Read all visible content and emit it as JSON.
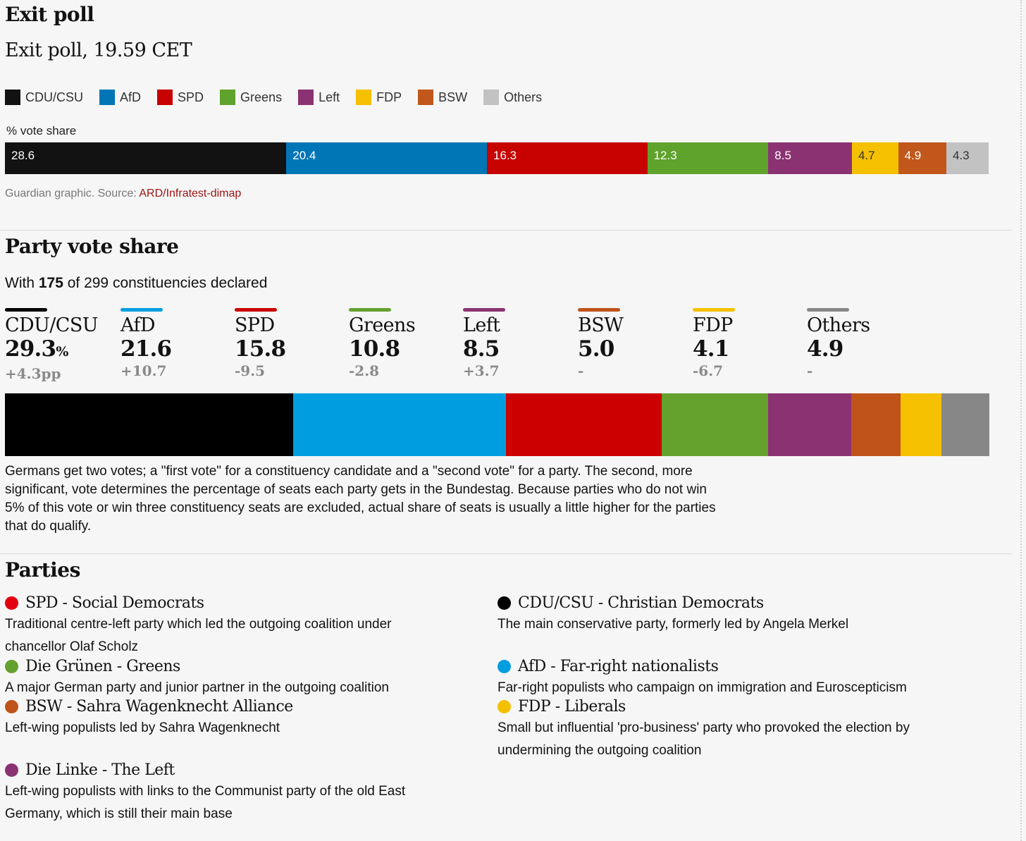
{
  "exit_poll": {
    "title": "Exit poll",
    "subtitle": "Exit poll, 19.59 CET",
    "axis_label": "% vote share",
    "source_prefix": "Guardian graphic. Source: ",
    "source_link": "ARD/Infratest-dimap"
  },
  "party_vote_share": {
    "title": "Party vote share",
    "declared_prefix": "With ",
    "declared_count": "175",
    "declared_suffix": " of 299 constituencies declared",
    "explanation": "Germans get two votes; a \"first vote\" for a constituency candidate and a \"second vote\" for a party. The second, more significant, vote determines the percentage of seats each party gets in the Bundestag. Because parties who do not win 5% of this vote or win three constituency seats are excluded, actual share of seats is usually a little higher for the parties that do qualify.",
    "parties": [
      {
        "name": "CDU/CSU",
        "value": "29.3",
        "unit": "%",
        "change": "+4.3pp",
        "color": "#000000"
      },
      {
        "name": "AfD",
        "value": "21.6",
        "unit": "",
        "change": "+10.7",
        "color": "#009ee0"
      },
      {
        "name": "SPD",
        "value": "15.8",
        "unit": "",
        "change": "-9.5",
        "color": "#cc0000"
      },
      {
        "name": "Greens",
        "value": "10.8",
        "unit": "",
        "change": "-2.8",
        "color": "#64a12d"
      },
      {
        "name": "Left",
        "value": "8.5",
        "unit": "",
        "change": "+3.7",
        "color": "#8b3372"
      },
      {
        "name": "BSW",
        "value": "5.0",
        "unit": "",
        "change": "-",
        "color": "#bf5319"
      },
      {
        "name": "FDP",
        "value": "4.1",
        "unit": "",
        "change": "-6.7",
        "color": "#f5c000"
      },
      {
        "name": "Others",
        "value": "4.9",
        "unit": "",
        "change": "-",
        "color": "#878787"
      }
    ]
  },
  "parties_section": {
    "title": "Parties",
    "left": [
      {
        "title": "SPD - Social Democrats",
        "desc": "Traditional centre-left party which led the outgoing coalition under chancellor Olaf Scholz",
        "color": "#e3000f"
      },
      {
        "title": "Die Grünen - Greens",
        "desc": "A major German party and junior partner in the outgoing coalition",
        "color": "#64a12d"
      },
      {
        "title": "BSW - Sahra Wagenknecht Alliance",
        "desc": "Left-wing populists led by Sahra Wagenknecht",
        "color": "#bf5319"
      },
      {
        "title": "Die Linke - The Left",
        "desc": "Left-wing populists with links to the Communist party of the old East Germany, which is still their main base",
        "color": "#8b3372"
      }
    ],
    "right": [
      {
        "title": "CDU/CSU - Christian Democrats",
        "desc": "The main conservative party, formerly led by Angela Merkel",
        "color": "#000000"
      },
      {
        "title": "AfD - Far-right nationalists",
        "desc": "Far-right populists who campaign on immigration and Euroscepticism",
        "color": "#009ee0"
      },
      {
        "title": "FDP - Liberals",
        "desc": "Small but influential 'pro-business' party who provoked the election by undermining the outgoing coalition",
        "color": "#f5c000"
      }
    ]
  },
  "chart_data": [
    {
      "type": "bar",
      "title": "Exit poll, 19.59 CET",
      "xlabel": "% vote share",
      "ylabel": "",
      "orientation": "horizontal-stacked",
      "categories": [
        "CDU/CSU",
        "AfD",
        "SPD",
        "Greens",
        "Left",
        "FDP",
        "BSW",
        "Others"
      ],
      "values": [
        28.6,
        20.4,
        16.3,
        12.3,
        8.5,
        4.7,
        4.9,
        4.3
      ],
      "labels": [
        "28.6",
        "20.4",
        "16.3",
        "12.3",
        "8.5",
        "4.7",
        "4.9",
        "4.3"
      ],
      "colors": [
        "#121212",
        "#0076b6",
        "#c70000",
        "#5fa22c",
        "#8b3372",
        "#f5c000",
        "#c1571a",
        "#c2c2c2"
      ],
      "label_colors": [
        "#ffffff",
        "#ffffff",
        "#ffffff",
        "#ffffff",
        "#ffffff",
        "#333333",
        "#ffffff",
        "#333333"
      ],
      "legend": [
        "CDU/CSU",
        "AfD",
        "SPD",
        "Greens",
        "Left",
        "FDP",
        "BSW",
        "Others"
      ],
      "legend_colors": [
        "#121212",
        "#0076b6",
        "#c70000",
        "#5fa22c",
        "#8b3372",
        "#f5c000",
        "#c1571a",
        "#c2c2c2"
      ]
    },
    {
      "type": "bar",
      "title": "Party vote share",
      "xlabel": "",
      "ylabel": "",
      "orientation": "horizontal-stacked",
      "categories": [
        "CDU/CSU",
        "AfD",
        "SPD",
        "Greens",
        "Left",
        "BSW",
        "FDP",
        "Others"
      ],
      "values": [
        29.3,
        21.6,
        15.8,
        10.8,
        8.5,
        5.0,
        4.1,
        4.9
      ],
      "colors": [
        "#000000",
        "#009ee0",
        "#cc0000",
        "#64a12d",
        "#8b3372",
        "#bf5319",
        "#f5c000",
        "#878787"
      ]
    }
  ]
}
